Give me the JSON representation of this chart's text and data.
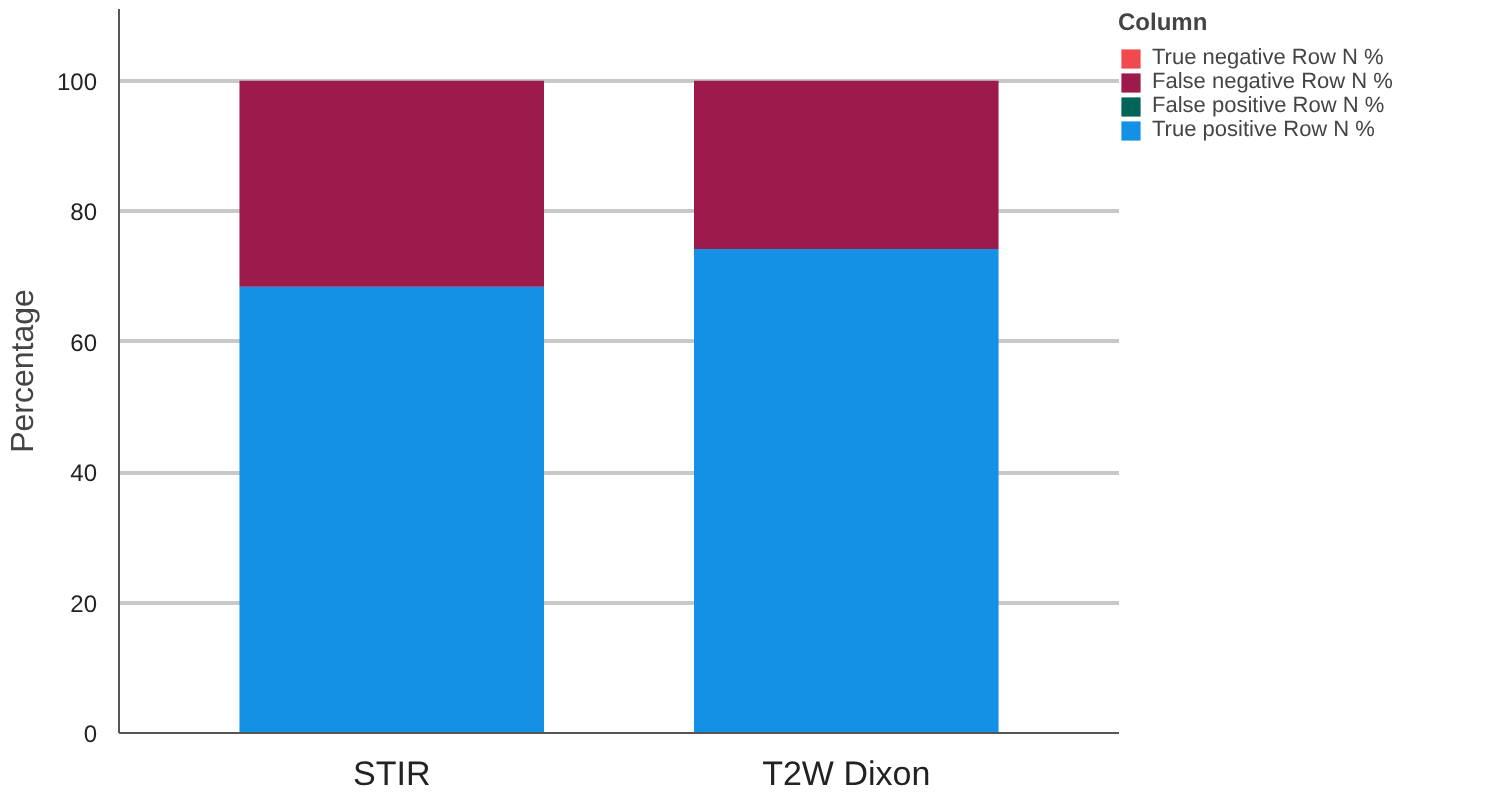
{
  "chart_data": {
    "type": "bar",
    "stacked": true,
    "ylabel": "Percentage",
    "legend_title": "Column",
    "legend": "top right",
    "grid": "y",
    "categories": [
      "STIR",
      "T2W Dixon"
    ],
    "series": [
      {
        "name": "True positive Row N %",
        "color": "#1490e4",
        "values": [
          68.4,
          74.2
        ]
      },
      {
        "name": "False positive Row N %",
        "color": "#00645a",
        "values": [
          0,
          0
        ]
      },
      {
        "name": "False negative Row N %",
        "color": "#9c1a4c",
        "values": [
          31.6,
          25.8
        ]
      },
      {
        "name": "True negative Row N %",
        "color": "#f04a4e",
        "values": [
          0,
          0
        ]
      }
    ],
    "ylim": [
      0,
      111
    ],
    "yticks": [
      0,
      20,
      40,
      60,
      80,
      100
    ]
  }
}
